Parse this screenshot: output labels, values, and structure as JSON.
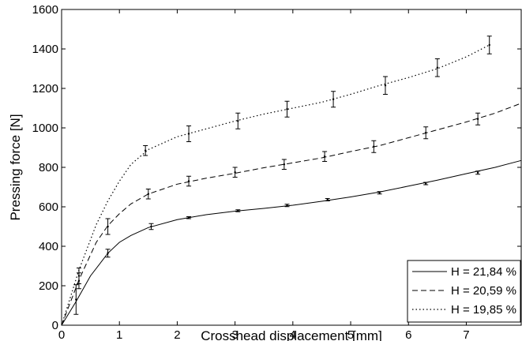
{
  "chart_data": {
    "type": "line",
    "title": "",
    "xlabel": "Crosshead displacement [mm]",
    "ylabel": "Pressing force [N]",
    "xlim": [
      0,
      7.95
    ],
    "ylim": [
      0,
      1600
    ],
    "xticks": [
      0,
      1,
      2,
      3,
      4,
      5,
      6,
      7
    ],
    "yticks": [
      0,
      200,
      400,
      600,
      800,
      1000,
      1200,
      1400,
      1600
    ],
    "grid": false,
    "legend_position": "lower-right",
    "series": [
      {
        "name": "H = 21,84 %",
        "line_style": "solid",
        "x": [
          0,
          0.25,
          0.5,
          0.8,
          1.0,
          1.2,
          1.5,
          2.0,
          2.5,
          3.0,
          3.5,
          4.0,
          4.5,
          5.0,
          5.5,
          6.0,
          6.5,
          7.0,
          7.5,
          7.95
        ],
        "y": [
          0,
          120,
          250,
          365,
          420,
          455,
          495,
          535,
          560,
          578,
          592,
          608,
          628,
          650,
          675,
          705,
          735,
          768,
          800,
          835
        ],
        "error_bars": [
          {
            "x": 0.25,
            "y": 130,
            "err": 75
          },
          {
            "x": 0.8,
            "y": 365,
            "err": 20
          },
          {
            "x": 1.55,
            "y": 500,
            "err": 15
          },
          {
            "x": 2.2,
            "y": 545,
            "err": 5
          },
          {
            "x": 3.05,
            "y": 580,
            "err": 5
          },
          {
            "x": 3.9,
            "y": 607,
            "err": 6
          },
          {
            "x": 4.6,
            "y": 636,
            "err": 6
          },
          {
            "x": 5.5,
            "y": 671,
            "err": 6
          },
          {
            "x": 6.3,
            "y": 718,
            "err": 6
          },
          {
            "x": 7.2,
            "y": 773,
            "err": 8
          }
        ]
      },
      {
        "name": "H = 20,59 %",
        "line_style": "dashed",
        "x": [
          0,
          0.3,
          0.6,
          0.8,
          1.0,
          1.2,
          1.5,
          2.0,
          2.5,
          3.0,
          3.5,
          4.0,
          4.5,
          5.0,
          5.5,
          6.0,
          6.5,
          7.0,
          7.5,
          7.95
        ],
        "y": [
          0,
          230,
          420,
          505,
          565,
          615,
          665,
          715,
          745,
          770,
          798,
          823,
          848,
          880,
          910,
          950,
          990,
          1030,
          1075,
          1125
        ],
        "error_bars": [
          {
            "x": 0.3,
            "y": 225,
            "err": 40
          },
          {
            "x": 0.8,
            "y": 500,
            "err": 40
          },
          {
            "x": 1.5,
            "y": 665,
            "err": 25
          },
          {
            "x": 2.2,
            "y": 730,
            "err": 25
          },
          {
            "x": 3.0,
            "y": 775,
            "err": 25
          },
          {
            "x": 3.85,
            "y": 815,
            "err": 25
          },
          {
            "x": 4.55,
            "y": 855,
            "err": 25
          },
          {
            "x": 5.4,
            "y": 905,
            "err": 30
          },
          {
            "x": 6.3,
            "y": 975,
            "err": 30
          },
          {
            "x": 7.2,
            "y": 1045,
            "err": 30
          }
        ]
      },
      {
        "name": "H = 19,85 %",
        "line_style": "dotted",
        "x": [
          0,
          0.3,
          0.6,
          0.8,
          1.0,
          1.2,
          1.5,
          2.0,
          2.5,
          3.0,
          3.5,
          4.0,
          4.5,
          5.0,
          5.5,
          6.0,
          6.5,
          7.0,
          7.4
        ],
        "y": [
          0,
          280,
          510,
          630,
          730,
          815,
          890,
          955,
          995,
          1035,
          1070,
          1100,
          1130,
          1170,
          1215,
          1255,
          1300,
          1360,
          1420
        ],
        "error_bars": [
          {
            "x": 0.3,
            "y": 250,
            "err": 40
          },
          {
            "x": 1.45,
            "y": 885,
            "err": 25
          },
          {
            "x": 2.2,
            "y": 970,
            "err": 40
          },
          {
            "x": 3.05,
            "y": 1035,
            "err": 40
          },
          {
            "x": 3.9,
            "y": 1095,
            "err": 40
          },
          {
            "x": 4.7,
            "y": 1145,
            "err": 40
          },
          {
            "x": 5.6,
            "y": 1215,
            "err": 45
          },
          {
            "x": 6.5,
            "y": 1305,
            "err": 45
          },
          {
            "x": 7.4,
            "y": 1420,
            "err": 45
          }
        ]
      }
    ]
  }
}
